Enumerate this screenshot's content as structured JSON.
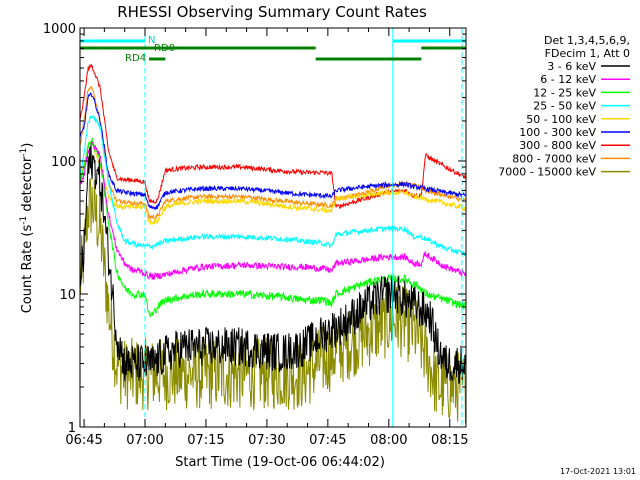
{
  "chart_data": {
    "type": "line",
    "title": "RHESSI Observing Summary Count Rates",
    "xlabel": "Start Time (19-Oct-06 06:44:02)",
    "ylabel_main": "Count Rate (s",
    "ylabel_sup1": "-1",
    "ylabel_mid": " detector",
    "ylabel_sup2": "-1",
    "ylabel_end": ")",
    "yscale": "log",
    "ylim": [
      1,
      1000
    ],
    "xlim_minutes": [
      0,
      95
    ],
    "x_ticks": [
      {
        "label": "06:45",
        "minutes": 1
      },
      {
        "label": "07:00",
        "minutes": 16
      },
      {
        "label": "07:15",
        "minutes": 31
      },
      {
        "label": "07:30",
        "minutes": 46
      },
      {
        "label": "07:45",
        "minutes": 61
      },
      {
        "label": "08:00",
        "minutes": 76
      },
      {
        "label": "08:15",
        "minutes": 91
      }
    ],
    "y_ticks": [
      {
        "label": "1",
        "value": 1
      },
      {
        "label": "10",
        "value": 10
      },
      {
        "label": "100",
        "value": 100
      },
      {
        "label": "1000",
        "value": 1000
      }
    ],
    "legend_header": [
      "Det 1,3,4,5,6,9,",
      "FDecim 1, Att 0"
    ],
    "legend_placement": "right",
    "series": [
      {
        "name": "3 - 6 keV",
        "color": "#000000",
        "noise": 0.3,
        "points": [
          [
            0,
            13
          ],
          [
            1,
            20
          ],
          [
            2,
            90
          ],
          [
            3,
            100
          ],
          [
            5,
            70
          ],
          [
            7,
            20
          ],
          [
            9,
            5
          ],
          [
            11,
            3
          ],
          [
            13,
            3
          ],
          [
            15,
            3
          ],
          [
            16,
            3
          ],
          [
            18,
            3
          ],
          [
            21,
            3.5
          ],
          [
            25,
            4
          ],
          [
            30,
            4
          ],
          [
            40,
            4
          ],
          [
            50,
            3.6
          ],
          [
            55,
            4
          ],
          [
            60,
            5
          ],
          [
            65,
            6
          ],
          [
            70,
            8
          ],
          [
            75,
            10
          ],
          [
            78,
            10
          ],
          [
            80,
            9
          ],
          [
            83,
            8
          ],
          [
            86,
            7
          ],
          [
            88,
            4
          ],
          [
            90,
            3
          ],
          [
            95,
            3
          ]
        ]
      },
      {
        "name": "6 - 12 keV",
        "color": "#ff00ff",
        "noise": 0.05,
        "points": [
          [
            0,
            65
          ],
          [
            1,
            80
          ],
          [
            2,
            120
          ],
          [
            3,
            135
          ],
          [
            5,
            110
          ],
          [
            7,
            40
          ],
          [
            9,
            22
          ],
          [
            11,
            17
          ],
          [
            13,
            15
          ],
          [
            15,
            15
          ],
          [
            16,
            14
          ],
          [
            18,
            13.5
          ],
          [
            21,
            14
          ],
          [
            25,
            15
          ],
          [
            30,
            16
          ],
          [
            40,
            16.5
          ],
          [
            50,
            16
          ],
          [
            55,
            16
          ],
          [
            60,
            15.5
          ],
          [
            62,
            15
          ],
          [
            63,
            17
          ],
          [
            70,
            18
          ],
          [
            75,
            19
          ],
          [
            80,
            19
          ],
          [
            82,
            17
          ],
          [
            84,
            17
          ],
          [
            85,
            20
          ],
          [
            90,
            16
          ],
          [
            95,
            14
          ]
        ]
      },
      {
        "name": "12 - 25 keV",
        "color": "#00ff00",
        "noise": 0.06,
        "points": [
          [
            0,
            70
          ],
          [
            1,
            90
          ],
          [
            2,
            130
          ],
          [
            3,
            140
          ],
          [
            5,
            100
          ],
          [
            7,
            35
          ],
          [
            9,
            15
          ],
          [
            11,
            11
          ],
          [
            13,
            10
          ],
          [
            15,
            10
          ],
          [
            16,
            10
          ],
          [
            17,
            7
          ],
          [
            18,
            7
          ],
          [
            19,
            8
          ],
          [
            21,
            9
          ],
          [
            25,
            9.5
          ],
          [
            30,
            10
          ],
          [
            40,
            10
          ],
          [
            50,
            9.5
          ],
          [
            55,
            9
          ],
          [
            60,
            9
          ],
          [
            62,
            8.5
          ],
          [
            63,
            10
          ],
          [
            70,
            12
          ],
          [
            75,
            13
          ],
          [
            80,
            13
          ],
          [
            82,
            12
          ],
          [
            84,
            11
          ],
          [
            85,
            10
          ],
          [
            90,
            9
          ],
          [
            95,
            8
          ]
        ]
      },
      {
        "name": "25 - 50 keV",
        "color": "#00ffff",
        "noise": 0.04,
        "points": [
          [
            0,
            80
          ],
          [
            1,
            110
          ],
          [
            2,
            200
          ],
          [
            3,
            220
          ],
          [
            5,
            180
          ],
          [
            7,
            70
          ],
          [
            9,
            35
          ],
          [
            11,
            25
          ],
          [
            13,
            24
          ],
          [
            15,
            23
          ],
          [
            16,
            23
          ],
          [
            18,
            23
          ],
          [
            21,
            25
          ],
          [
            25,
            26
          ],
          [
            30,
            27
          ],
          [
            40,
            27
          ],
          [
            50,
            26
          ],
          [
            55,
            25
          ],
          [
            60,
            24
          ],
          [
            62,
            23
          ],
          [
            63,
            28
          ],
          [
            70,
            30
          ],
          [
            75,
            31
          ],
          [
            80,
            31
          ],
          [
            82,
            27
          ],
          [
            84,
            27
          ],
          [
            85,
            26
          ],
          [
            90,
            22
          ],
          [
            95,
            20
          ]
        ]
      },
      {
        "name": "50 - 100 keV",
        "color": "#ffd700",
        "noise": 0.04,
        "points": [
          [
            0,
            70
          ],
          [
            1,
            90
          ],
          [
            2,
            130
          ],
          [
            3,
            140
          ],
          [
            5,
            90
          ],
          [
            7,
            55
          ],
          [
            9,
            46
          ],
          [
            11,
            45
          ],
          [
            13,
            45
          ],
          [
            15,
            45
          ],
          [
            16,
            45
          ],
          [
            17,
            35
          ],
          [
            19,
            35
          ],
          [
            21,
            45
          ],
          [
            25,
            48
          ],
          [
            30,
            50
          ],
          [
            40,
            50
          ],
          [
            50,
            46
          ],
          [
            55,
            44
          ],
          [
            60,
            43
          ],
          [
            62,
            42
          ],
          [
            63,
            52
          ],
          [
            70,
            55
          ],
          [
            75,
            58
          ],
          [
            80,
            58
          ],
          [
            82,
            54
          ],
          [
            84,
            53
          ],
          [
            85,
            52
          ],
          [
            90,
            48
          ],
          [
            95,
            44
          ]
        ]
      },
      {
        "name": "100 - 300 keV",
        "color": "#0000ff",
        "noise": 0.035,
        "points": [
          [
            0,
            150
          ],
          [
            1,
            180
          ],
          [
            2,
            300
          ],
          [
            3,
            320
          ],
          [
            5,
            200
          ],
          [
            7,
            80
          ],
          [
            9,
            60
          ],
          [
            11,
            58
          ],
          [
            13,
            57
          ],
          [
            15,
            56
          ],
          [
            16,
            56
          ],
          [
            17,
            45
          ],
          [
            19,
            45
          ],
          [
            21,
            58
          ],
          [
            25,
            60
          ],
          [
            30,
            62
          ],
          [
            40,
            62
          ],
          [
            50,
            58
          ],
          [
            55,
            56
          ],
          [
            60,
            55
          ],
          [
            62,
            54
          ],
          [
            63,
            60
          ],
          [
            70,
            64
          ],
          [
            75,
            66
          ],
          [
            80,
            67
          ],
          [
            82,
            64
          ],
          [
            84,
            63
          ],
          [
            85,
            62
          ],
          [
            90,
            58
          ],
          [
            95,
            55
          ]
        ]
      },
      {
        "name": "300 - 800 keV",
        "color": "#ff0000",
        "noise": 0.035,
        "points": [
          [
            0,
            200
          ],
          [
            1,
            300
          ],
          [
            2,
            500
          ],
          [
            3,
            520
          ],
          [
            5,
            350
          ],
          [
            7,
            120
          ],
          [
            9,
            75
          ],
          [
            11,
            72
          ],
          [
            13,
            72
          ],
          [
            15,
            70
          ],
          [
            16,
            70
          ],
          [
            17,
            50
          ],
          [
            19,
            50
          ],
          [
            21,
            85
          ],
          [
            25,
            88
          ],
          [
            30,
            90
          ],
          [
            40,
            90
          ],
          [
            50,
            84
          ],
          [
            55,
            82
          ],
          [
            60,
            82
          ],
          [
            62,
            80
          ],
          [
            63,
            45
          ],
          [
            70,
            52
          ],
          [
            75,
            58
          ],
          [
            80,
            60
          ],
          [
            82,
            55
          ],
          [
            84,
            55
          ],
          [
            85,
            110
          ],
          [
            90,
            90
          ],
          [
            95,
            75
          ]
        ]
      },
      {
        "name": "800 - 7000 keV",
        "color": "#ff8c00",
        "noise": 0.035,
        "points": [
          [
            0,
            130
          ],
          [
            1,
            200
          ],
          [
            2,
            350
          ],
          [
            3,
            360
          ],
          [
            5,
            200
          ],
          [
            7,
            70
          ],
          [
            9,
            50
          ],
          [
            11,
            50
          ],
          [
            13,
            48
          ],
          [
            15,
            48
          ],
          [
            16,
            48
          ],
          [
            17,
            38
          ],
          [
            19,
            38
          ],
          [
            21,
            50
          ],
          [
            25,
            52
          ],
          [
            30,
            54
          ],
          [
            40,
            54
          ],
          [
            50,
            50
          ],
          [
            55,
            48
          ],
          [
            60,
            47
          ],
          [
            62,
            46
          ],
          [
            63,
            52
          ],
          [
            70,
            57
          ],
          [
            75,
            65
          ],
          [
            80,
            68
          ],
          [
            82,
            65
          ],
          [
            84,
            64
          ],
          [
            85,
            60
          ],
          [
            90,
            55
          ],
          [
            95,
            50
          ]
        ]
      },
      {
        "name": "7000 - 15000 keV",
        "color": "#8b8b00",
        "noise": 0.55,
        "points": [
          [
            0,
            12
          ],
          [
            1,
            20
          ],
          [
            2,
            45
          ],
          [
            3,
            48
          ],
          [
            5,
            30
          ],
          [
            7,
            8
          ],
          [
            9,
            3
          ],
          [
            11,
            2.5
          ],
          [
            13,
            2.5
          ],
          [
            15,
            2.5
          ],
          [
            16,
            2.5
          ],
          [
            20,
            2.5
          ],
          [
            25,
            2.5
          ],
          [
            30,
            2.5
          ],
          [
            40,
            2.5
          ],
          [
            50,
            2.5
          ],
          [
            55,
            2.5
          ],
          [
            60,
            3.2
          ],
          [
            65,
            4
          ],
          [
            70,
            5
          ],
          [
            75,
            6
          ],
          [
            78,
            6.5
          ],
          [
            80,
            6
          ],
          [
            83,
            5
          ],
          [
            86,
            3
          ],
          [
            88,
            2
          ],
          [
            90,
            2
          ],
          [
            95,
            2
          ]
        ]
      }
    ],
    "status_bars": [
      {
        "label": "N",
        "color": "#00ffff",
        "lane": 1,
        "segments": [
          [
            0,
            16
          ],
          [
            77,
            95
          ]
        ]
      },
      {
        "label": "RD0",
        "color": "#008000",
        "lane": 2,
        "segments": [
          [
            16,
            58
          ],
          [
            84,
            95
          ]
        ]
      },
      {
        "label": "RD4",
        "color": "#008000",
        "lane": 3,
        "segments": [
          [
            17,
            21
          ],
          [
            58,
            84
          ]
        ]
      },
      {
        "label": "",
        "color": "#008000",
        "lane": 2,
        "segments": [
          [
            0,
            16
          ]
        ]
      }
    ],
    "vertical_markers": [
      {
        "minutes": 0,
        "color": "#00ffff",
        "style": "solid"
      },
      {
        "minutes": 16,
        "color": "#00ffff",
        "style": "dashed"
      },
      {
        "minutes": 77,
        "color": "#00ffff",
        "style": "solid"
      },
      {
        "minutes": 94,
        "color": "#00ffff",
        "style": "dashed"
      }
    ],
    "footer_date": "17-Oct-2021 13:01"
  }
}
